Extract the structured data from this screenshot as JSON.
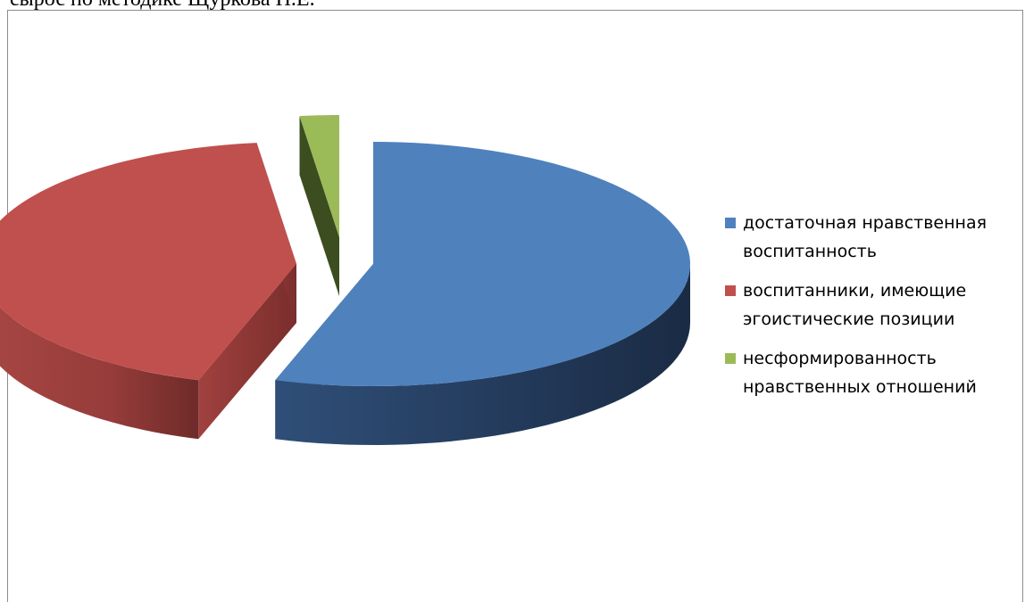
{
  "doc_text": "сырос по методике Щуркова Н.Е.",
  "chart_data": {
    "type": "pie",
    "title": "",
    "series": [
      {
        "categories": [
          "достаточная нравственная воспитанность",
          "воспитанники, имеющие эгоистические позиции",
          "несформированность нравственных отношений"
        ],
        "values": [
          55,
          43,
          2
        ],
        "colors": [
          "#4f81bd",
          "#c0504d",
          "#9bbb59"
        ]
      }
    ],
    "legend_position": "right",
    "exploded": true,
    "three_d": true
  },
  "legend": {
    "items": [
      {
        "line1": "достаточная нравственная",
        "line2": "воспитанность",
        "color": "#4f81bd"
      },
      {
        "line1": "воспитанники, имеющие",
        "line2": "эгоистические позиции",
        "color": "#c0504d"
      },
      {
        "line1": "несформированность",
        "line2": "нравственных отношений",
        "color": "#9bbb59"
      }
    ]
  }
}
